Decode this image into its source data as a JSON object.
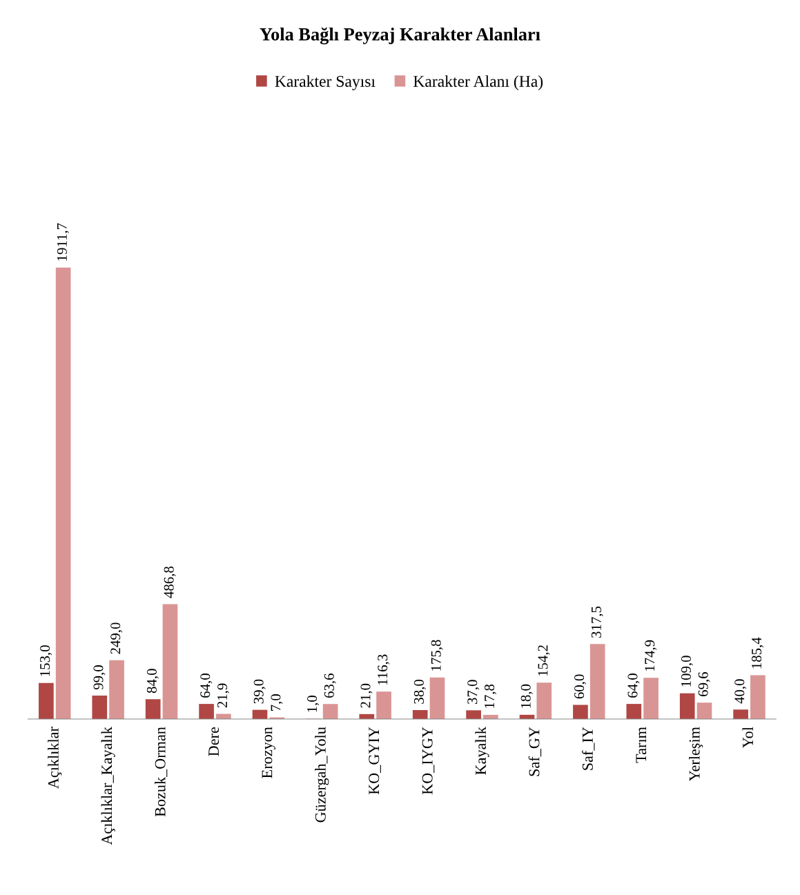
{
  "chart_data": {
    "type": "bar",
    "title": "Yola Bağlı Peyzaj Karakter Alanları",
    "categories": [
      "Açıklıklar",
      "Açıklıklar_Kayalık",
      "Bozuk_Orman",
      "Dere",
      "Erozyon",
      "Güzergah_Yolu",
      "KO_GYIY",
      "KO_IYGY",
      "Kayalık",
      "Saf_GY",
      "Saf_IY",
      "Tarım",
      "Yerleşim",
      "Yol"
    ],
    "series": [
      {
        "name": "Karakter Sayısı",
        "color": "#b04744",
        "values": [
          153.0,
          99.0,
          84.0,
          64.0,
          39.0,
          1.0,
          21.0,
          38.0,
          37.0,
          18.0,
          60.0,
          64.0,
          109.0,
          40.0
        ],
        "value_labels": [
          "153,0",
          "99,0",
          "84,0",
          "64,0",
          "39,0",
          "1,0",
          "21,0",
          "38,0",
          "37,0",
          "18,0",
          "60,0",
          "64,0",
          "109,0",
          "40,0"
        ]
      },
      {
        "name": "Karakter Alanı (Ha)",
        "color": "#d99594",
        "values": [
          1911.7,
          249.0,
          486.8,
          21.9,
          7.0,
          63.6,
          116.3,
          175.8,
          17.8,
          154.2,
          317.5,
          174.9,
          69.6,
          185.4
        ],
        "value_labels": [
          "1911,7",
          "249,0",
          "486,8",
          "21,9",
          "7,0",
          "63,6",
          "116,3",
          "175,8",
          "17,8",
          "154,2",
          "317,5",
          "174,9",
          "69,6",
          "185,4"
        ]
      }
    ],
    "legend": "top",
    "grid": false
  }
}
